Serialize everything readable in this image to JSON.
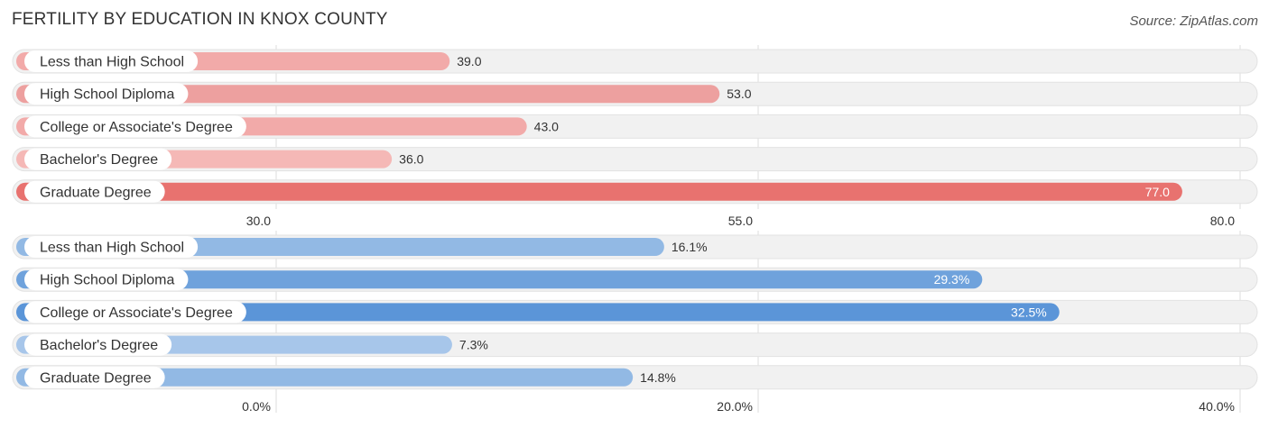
{
  "title": "FERTILITY BY EDUCATION IN KNOX COUNTY",
  "source": "Source: ZipAtlas.com",
  "chart_data": [
    {
      "type": "bar",
      "orientation": "horizontal",
      "categories": [
        "Less than High School",
        "High School Diploma",
        "College or Associate's Degree",
        "Bachelor's Degree",
        "Graduate Degree"
      ],
      "values": [
        39.0,
        53.0,
        43.0,
        36.0,
        77.0
      ],
      "value_labels": [
        "39.0",
        "53.0",
        "43.0",
        "36.0",
        "77.0"
      ],
      "ticks": [
        30.0,
        55.0,
        80.0
      ],
      "tick_labels": [
        "30.0",
        "55.0",
        "80.0"
      ],
      "xlim": [
        30.0,
        80.0
      ],
      "grid": true,
      "colors": [
        "#f2aaa9",
        "#eda09f",
        "#f2aaa9",
        "#f5b8b6",
        "#e8726f"
      ],
      "label_inside": [
        false,
        false,
        false,
        false,
        true
      ]
    },
    {
      "type": "bar",
      "orientation": "horizontal",
      "categories": [
        "Less than High School",
        "High School Diploma",
        "College or Associate's Degree",
        "Bachelor's Degree",
        "Graduate Degree"
      ],
      "values": [
        16.1,
        29.3,
        32.5,
        7.3,
        14.8
      ],
      "value_labels": [
        "16.1%",
        "29.3%",
        "32.5%",
        "7.3%",
        "14.8%"
      ],
      "ticks": [
        0.0,
        20.0,
        40.0
      ],
      "tick_labels": [
        "0.0%",
        "20.0%",
        "40.0%"
      ],
      "xlim": [
        0.0,
        40.0
      ],
      "grid": true,
      "colors": [
        "#92b9e4",
        "#6fa2dc",
        "#5b95d8",
        "#a7c6ea",
        "#92b9e4"
      ],
      "label_inside": [
        false,
        true,
        true,
        false,
        false
      ]
    }
  ]
}
